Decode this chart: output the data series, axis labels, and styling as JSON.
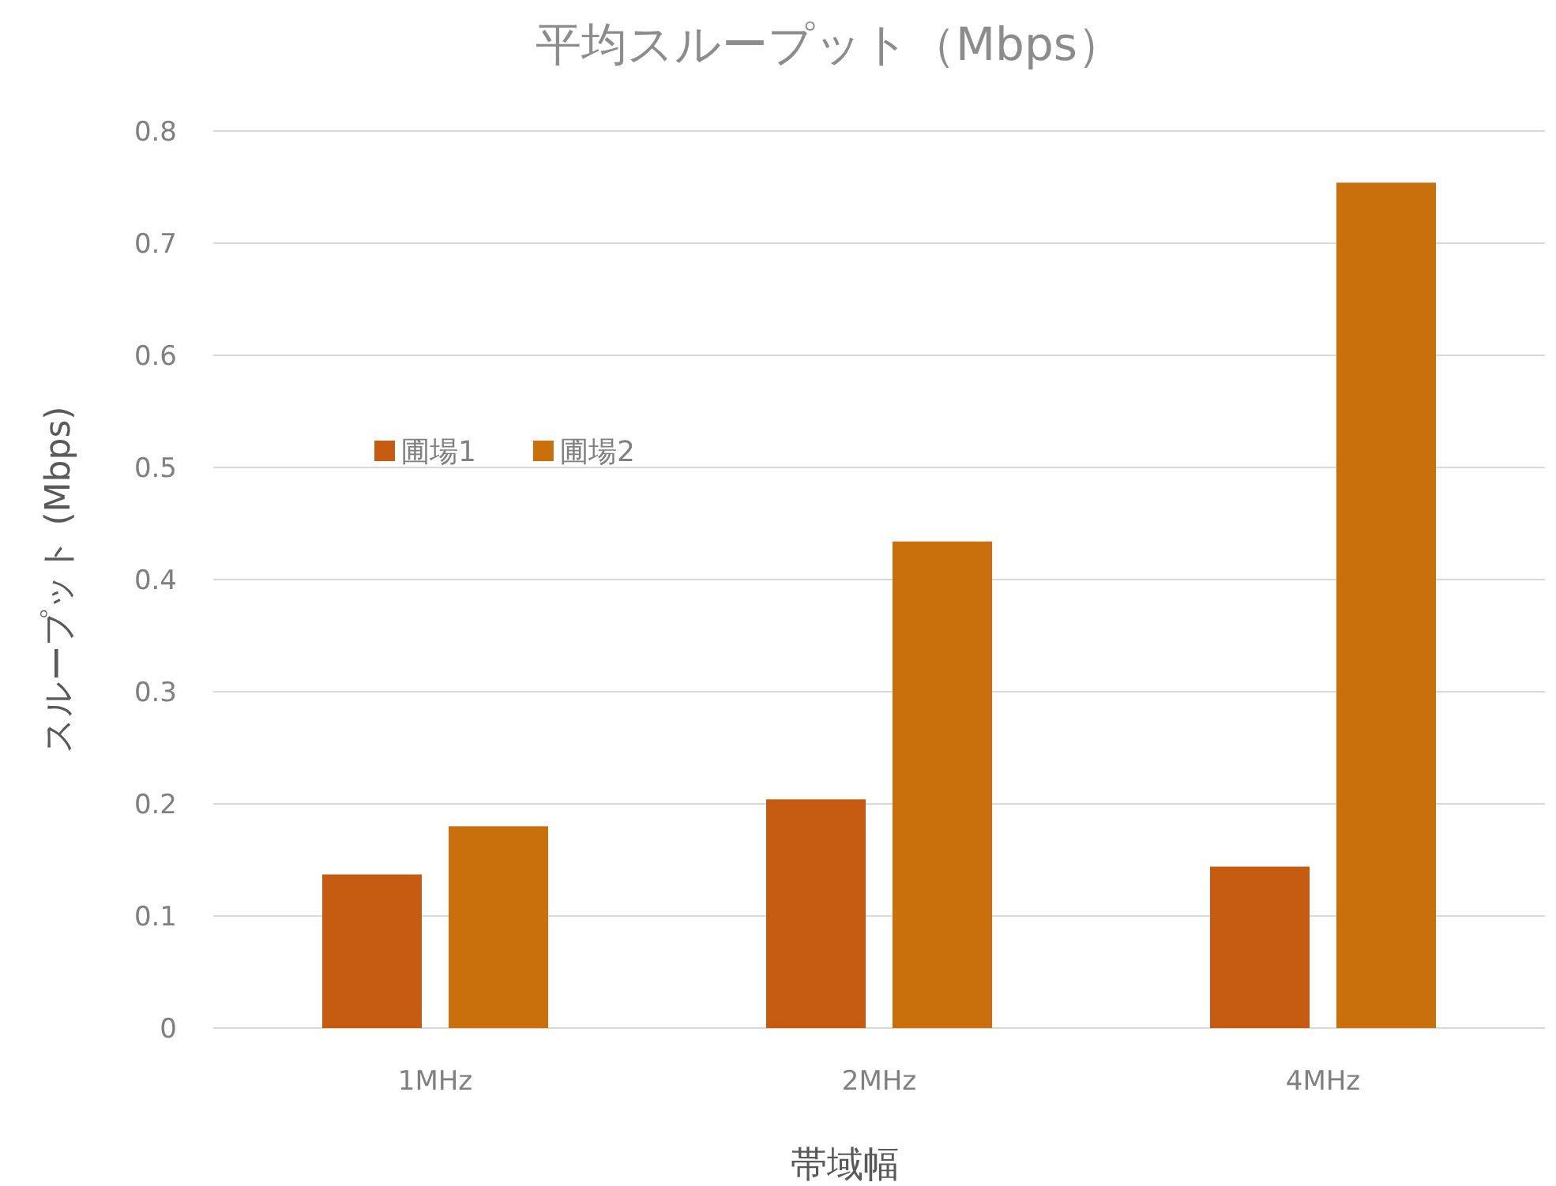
{
  "chart_data": {
    "type": "bar",
    "title": "平均スループット（Mbps）",
    "xlabel": "帯域幅",
    "ylabel": "スループット (Mbps)",
    "categories": [
      "1MHz",
      "2MHz",
      "4MHz"
    ],
    "series": [
      {
        "name": "圃場1",
        "color": "#c55a11",
        "values": [
          0.137,
          0.204,
          0.144
        ]
      },
      {
        "name": "圃場2",
        "color": "#c9700c",
        "values": [
          0.18,
          0.434,
          0.754
        ]
      }
    ],
    "ylim": [
      0,
      0.8
    ],
    "yticks": [
      0,
      0.1,
      0.2,
      0.3,
      0.4,
      0.5,
      0.6,
      0.7,
      0.8
    ],
    "grid": "y",
    "legend": "left"
  }
}
